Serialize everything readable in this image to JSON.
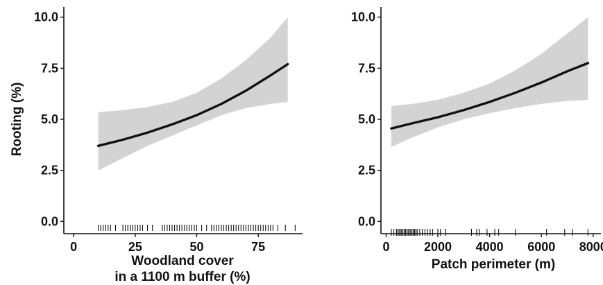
{
  "chart_data": [
    {
      "type": "line",
      "ylabel": "Rooting (%)",
      "xlabel_lines": [
        "Woodland cover",
        "in a 1100 m buffer (%)"
      ],
      "xlim": [
        -4,
        93
      ],
      "ylim": [
        -0.6,
        10.5
      ],
      "xticks": [
        0,
        25,
        50,
        75
      ],
      "xtick_labels": [
        "0",
        "25",
        "50",
        "75"
      ],
      "yticks": [
        0.0,
        2.5,
        5.0,
        7.5,
        10.0
      ],
      "ytick_labels": [
        "0.0",
        "2.5",
        "5.0",
        "7.5",
        "10.0"
      ],
      "series": [
        {
          "x": [
            10,
            20,
            30,
            40,
            50,
            60,
            70,
            80,
            87
          ],
          "fit": [
            3.7,
            4.0,
            4.35,
            4.75,
            5.2,
            5.75,
            6.4,
            7.15,
            7.7
          ],
          "lower": [
            2.5,
            3.1,
            3.7,
            4.2,
            4.7,
            5.2,
            5.55,
            5.75,
            5.85
          ],
          "upper": [
            5.35,
            5.45,
            5.6,
            5.85,
            6.3,
            7.0,
            7.9,
            9.0,
            10.0
          ]
        }
      ],
      "rug_x": [
        10,
        11,
        12,
        13,
        14,
        15,
        17,
        20,
        21,
        22,
        23,
        24,
        25,
        26,
        27,
        28,
        30,
        32,
        36,
        37,
        38,
        39,
        40,
        41,
        42,
        43,
        44,
        45,
        46,
        47,
        48,
        49,
        50,
        52,
        54,
        56,
        57,
        58,
        59,
        60,
        61,
        62,
        63,
        64,
        65,
        66,
        67,
        68,
        69,
        70,
        71,
        72,
        73,
        74,
        75,
        76,
        77,
        78,
        79,
        80,
        81,
        83,
        86,
        90
      ]
    },
    {
      "type": "line",
      "ylabel": "",
      "xlabel_lines": [
        "Patch perimeter (m)"
      ],
      "xlim": [
        -200,
        8300
      ],
      "ylim": [
        -0.6,
        10.5
      ],
      "xticks": [
        0,
        2000,
        4000,
        6000,
        8000
      ],
      "xtick_labels": [
        "0",
        "2000",
        "4000",
        "6000",
        "8000"
      ],
      "yticks": [
        0.0,
        2.5,
        5.0,
        7.5,
        10.0
      ],
      "ytick_labels": [
        "0.0",
        "2.5",
        "5.0",
        "7.5",
        "10.0"
      ],
      "series": [
        {
          "x": [
            200,
            1000,
            2000,
            3000,
            4000,
            5000,
            6000,
            7000,
            7800
          ],
          "fit": [
            4.55,
            4.8,
            5.1,
            5.45,
            5.85,
            6.3,
            6.8,
            7.35,
            7.75
          ],
          "lower": [
            3.65,
            4.1,
            4.6,
            5.0,
            5.3,
            5.55,
            5.75,
            5.9,
            5.95
          ],
          "upper": [
            5.65,
            5.75,
            5.95,
            6.3,
            6.75,
            7.4,
            8.2,
            9.2,
            10.0
          ]
        }
      ],
      "rug_x": [
        200,
        300,
        400,
        450,
        500,
        550,
        600,
        650,
        700,
        750,
        800,
        850,
        900,
        950,
        1000,
        1050,
        1100,
        1150,
        1200,
        1300,
        1400,
        1500,
        1600,
        1700,
        1800,
        2000,
        2100,
        2300,
        3300,
        3500,
        3600,
        3900,
        4200,
        4350,
        5000,
        6200,
        6900,
        7200,
        7800
      ]
    }
  ]
}
